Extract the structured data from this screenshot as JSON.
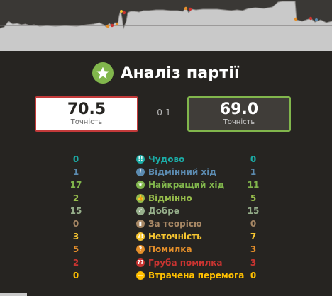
{
  "title": "Аналіз партії",
  "score": "0-1",
  "white": {
    "accuracy": "70.5",
    "label": "Точність"
  },
  "black": {
    "accuracy": "69.0",
    "label": "Точність"
  },
  "colors": {
    "brilliant": "#1baca6",
    "great": "#5c8bb0",
    "best": "#81b64c",
    "excellent": "#96bc4b",
    "good": "#96af8b",
    "book": "#a88865",
    "inaccuracy": "#f7c631",
    "mistake": "#e58f2a",
    "blunder": "#ca3431",
    "miss": "#ffc000"
  },
  "classifications": [
    {
      "key": "brilliant",
      "icon": "brilliant-icon",
      "glyph": "!!",
      "name": "Чудово",
      "white": "0",
      "black": "0"
    },
    {
      "key": "great",
      "icon": "great-move-icon",
      "glyph": "!",
      "name": "Відмінний хід",
      "white": "1",
      "black": "1"
    },
    {
      "key": "best",
      "icon": "best-move-star-icon",
      "glyph": "★",
      "name": "Найкращий хід",
      "white": "17",
      "black": "11"
    },
    {
      "key": "excellent",
      "icon": "thumbs-up-icon",
      "glyph": "👍",
      "name": "Відмінно",
      "white": "2",
      "black": "5"
    },
    {
      "key": "good",
      "icon": "checkmark-icon",
      "glyph": "✓",
      "name": "Добре",
      "white": "15",
      "black": "15"
    },
    {
      "key": "book",
      "icon": "book-icon",
      "glyph": "▮",
      "name": "За теорією",
      "white": "0",
      "black": "0"
    },
    {
      "key": "inaccuracy",
      "icon": "inaccuracy-icon",
      "glyph": "?!",
      "name": "Неточність",
      "white": "3",
      "black": "7"
    },
    {
      "key": "mistake",
      "icon": "mistake-icon",
      "glyph": "?",
      "name": "Помилка",
      "white": "5",
      "black": "3"
    },
    {
      "key": "blunder",
      "icon": "blunder-icon",
      "glyph": "??",
      "name": "Груба помилка",
      "white": "2",
      "black": "3"
    },
    {
      "key": "miss",
      "icon": "missed-win-icon",
      "glyph": "—",
      "name": "Втрачена перемога",
      "white": "0",
      "black": "0"
    }
  ]
}
